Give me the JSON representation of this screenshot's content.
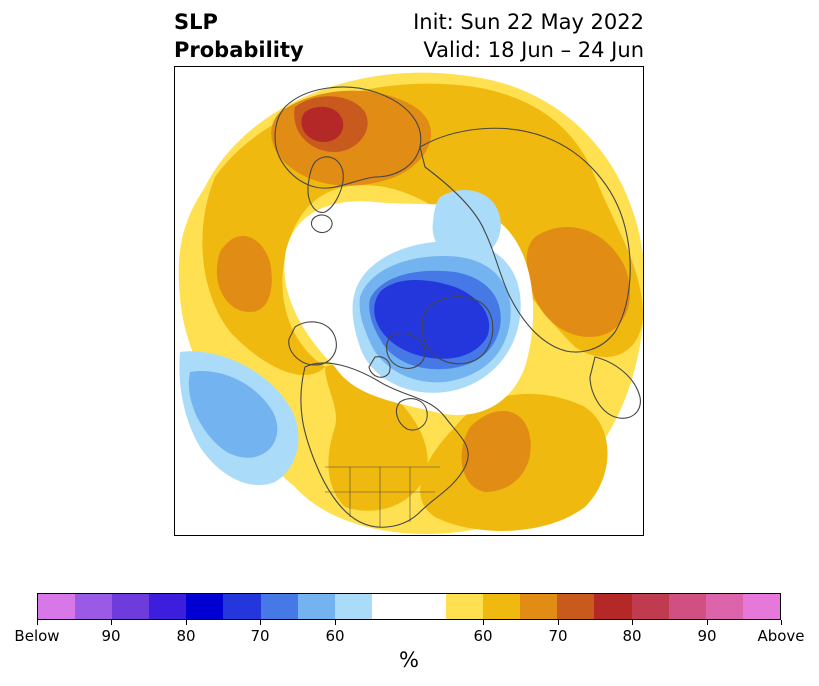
{
  "title": {
    "left_line1": "SLP",
    "left_line2": "Probability",
    "right_line1": "Init: Sun 22 May 2022",
    "right_line2": "Valid: 18 Jun – 24 Jun"
  },
  "map": {
    "projection": "north-polar-stereographic",
    "shading": {
      "below_light": "#aadcfa",
      "below_mid": "#73b4f0",
      "below_strong": "#4678e6",
      "below_deep": "#2337dc",
      "neutral": "#ffffff",
      "above_light": "#ffe050",
      "above_mid": "#f0b90f",
      "above_strong": "#e18c14",
      "above_deep": "#c85a1e",
      "above_deepest": "#b42828",
      "coastline": "#464646"
    }
  },
  "colorbar": {
    "colors": [
      "#d878e8",
      "#9b5ae6",
      "#6e3cdc",
      "#3c1edc",
      "#0000d2",
      "#2337dc",
      "#4678e6",
      "#73b4f0",
      "#aadcfa",
      "#ffffff",
      "#ffffff",
      "#ffe050",
      "#f0b90f",
      "#e18c14",
      "#c85a1e",
      "#b42828",
      "#c03a50",
      "#d05082",
      "#dc64aa",
      "#e678dc"
    ],
    "labels": [
      "Below",
      "90",
      "80",
      "70",
      "60",
      "60",
      "70",
      "80",
      "90",
      "Above"
    ],
    "unit": "%"
  }
}
